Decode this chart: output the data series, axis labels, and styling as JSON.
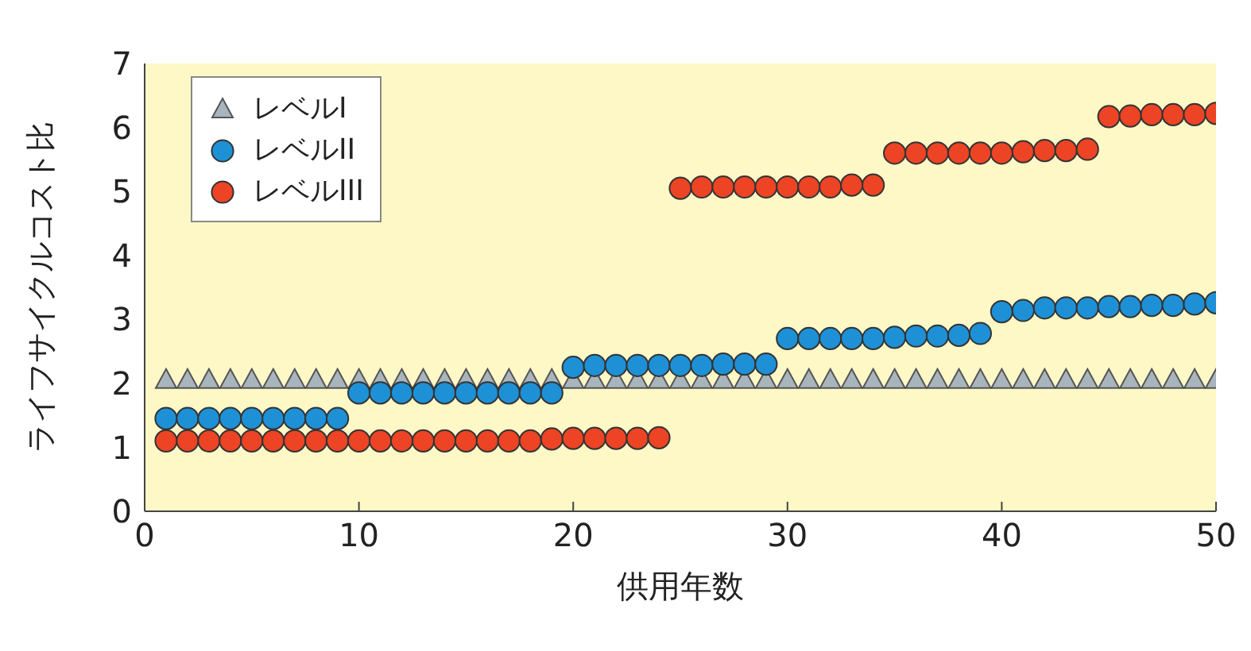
{
  "chart_data": {
    "type": "scatter",
    "xlabel": "供用年数",
    "ylabel": "ライフサイクルコスト比",
    "x": [
      1,
      2,
      3,
      4,
      5,
      6,
      7,
      8,
      9,
      10,
      11,
      12,
      13,
      14,
      15,
      16,
      17,
      18,
      19,
      20,
      21,
      22,
      23,
      24,
      25,
      26,
      27,
      28,
      29,
      30,
      31,
      32,
      33,
      34,
      35,
      36,
      37,
      38,
      39,
      40,
      41,
      42,
      43,
      44,
      45,
      46,
      47,
      48,
      49,
      50
    ],
    "xlim": [
      0,
      50
    ],
    "xticks": [
      0,
      10,
      20,
      30,
      40,
      50
    ],
    "ylim": [
      0,
      7
    ],
    "yticks": [
      0,
      1,
      2,
      3,
      4,
      5,
      6,
      7
    ],
    "grid": false,
    "legend": "top left",
    "series": [
      {
        "name": "レベルI",
        "color": "#a9b5bd",
        "marker": "triangle",
        "values": [
          2.05,
          2.05,
          2.05,
          2.05,
          2.05,
          2.05,
          2.05,
          2.05,
          2.05,
          2.05,
          2.05,
          2.05,
          2.05,
          2.05,
          2.05,
          2.05,
          2.05,
          2.05,
          2.05,
          2.05,
          2.05,
          2.05,
          2.05,
          2.05,
          2.05,
          2.05,
          2.05,
          2.05,
          2.05,
          2.05,
          2.05,
          2.05,
          2.05,
          2.05,
          2.05,
          2.05,
          2.05,
          2.05,
          2.05,
          2.05,
          2.05,
          2.05,
          2.05,
          2.05,
          2.05,
          2.05,
          2.05,
          2.05,
          2.05,
          2.05
        ]
      },
      {
        "name": "レベルII",
        "color": "#1e90d6",
        "marker": "circle",
        "values": [
          1.45,
          1.45,
          1.45,
          1.45,
          1.45,
          1.45,
          1.45,
          1.45,
          1.45,
          1.85,
          1.85,
          1.85,
          1.85,
          1.85,
          1.85,
          1.85,
          1.85,
          1.85,
          1.85,
          2.25,
          2.28,
          2.28,
          2.28,
          2.28,
          2.28,
          2.28,
          2.3,
          2.3,
          2.3,
          2.7,
          2.7,
          2.7,
          2.7,
          2.7,
          2.72,
          2.74,
          2.74,
          2.75,
          2.78,
          3.12,
          3.14,
          3.18,
          3.18,
          3.18,
          3.2,
          3.2,
          3.22,
          3.22,
          3.24,
          3.26
        ]
      },
      {
        "name": "レベルIII",
        "color": "#ec4424",
        "marker": "circle",
        "values": [
          1.1,
          1.1,
          1.1,
          1.1,
          1.1,
          1.1,
          1.1,
          1.1,
          1.1,
          1.1,
          1.1,
          1.1,
          1.1,
          1.1,
          1.1,
          1.1,
          1.1,
          1.1,
          1.13,
          1.14,
          1.14,
          1.14,
          1.14,
          1.15,
          5.05,
          5.07,
          5.07,
          5.07,
          5.07,
          5.07,
          5.07,
          5.07,
          5.1,
          5.1,
          5.6,
          5.6,
          5.6,
          5.6,
          5.6,
          5.6,
          5.62,
          5.64,
          5.64,
          5.66,
          6.17,
          6.18,
          6.2,
          6.2,
          6.2,
          6.22
        ]
      }
    ]
  }
}
